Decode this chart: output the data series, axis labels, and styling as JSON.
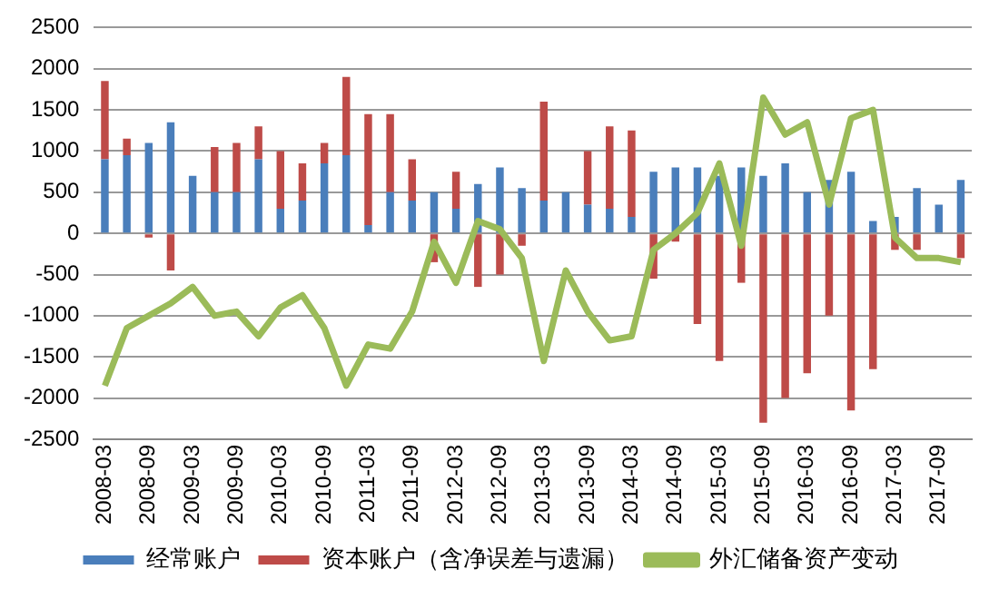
{
  "chart_data": {
    "type": "bar",
    "stacked": true,
    "categories": [
      "2008-03",
      null,
      "2008-09",
      null,
      "2009-03",
      null,
      "2009-09",
      null,
      "2010-03",
      null,
      "2010-09",
      null,
      "2011-03",
      null,
      "2011-09",
      null,
      "2012-03",
      null,
      "2012-09",
      null,
      "2013-03",
      null,
      "2013-09",
      null,
      "2014-03",
      null,
      "2014-09",
      null,
      "2015-03",
      null,
      "2015-09",
      null,
      "2016-03",
      null,
      "2016-09",
      null,
      "2017-03",
      null,
      "2017-09",
      null
    ],
    "series": [
      {
        "name": "经常账户",
        "color": "#4a7ebb",
        "values": [
          900,
          950,
          1100,
          1350,
          700,
          500,
          500,
          900,
          300,
          400,
          850,
          950,
          100,
          500,
          400,
          500,
          300,
          600,
          800,
          550,
          400,
          500,
          350,
          300,
          200,
          750,
          800,
          800,
          700,
          800,
          700,
          850,
          500,
          650,
          750,
          150,
          200,
          550,
          350,
          650
        ]
      },
      {
        "name": "资本账户（含净误差与遗漏）",
        "color": "#be4b48",
        "values": [
          950,
          200,
          -50,
          -450,
          0,
          550,
          600,
          400,
          700,
          450,
          250,
          950,
          1350,
          950,
          500,
          -350,
          450,
          -650,
          -500,
          -150,
          1200,
          0,
          650,
          1000,
          1050,
          -550,
          -100,
          -1100,
          -1550,
          -600,
          -2300,
          -2000,
          -1700,
          -1000,
          -2150,
          -1650,
          -200,
          -200,
          0,
          -300
        ]
      },
      {
        "name": "外汇储备资产变动",
        "type": "line",
        "color": "#9bbb59",
        "values": [
          -1850,
          -1150,
          -1000,
          -850,
          -650,
          -1000,
          -950,
          -1250,
          -900,
          -750,
          -1150,
          -1850,
          -1350,
          -1400,
          -950,
          -100,
          -600,
          150,
          50,
          -300,
          -1550,
          -450,
          -950,
          -1300,
          -1250,
          -200,
          0,
          250,
          850,
          -150,
          1650,
          1200,
          1350,
          350,
          1400,
          1500,
          -50,
          -300,
          -300,
          -350
        ]
      }
    ],
    "ylim": [
      -2500,
      2500
    ],
    "yticks": [
      -2500,
      -2000,
      -1500,
      -1000,
      -500,
      0,
      500,
      1000,
      1500,
      2000,
      2500
    ],
    "grid": "y",
    "legend": "bottom",
    "marker": "none",
    "line_style": "solid"
  }
}
